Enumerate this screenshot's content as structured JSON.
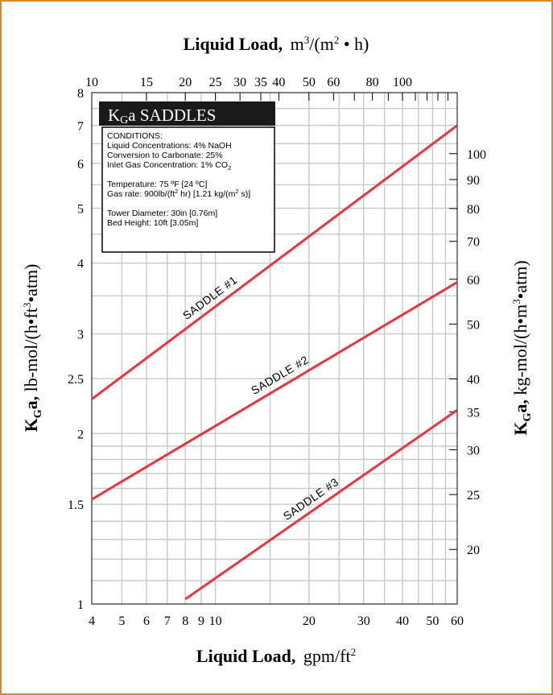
{
  "chart_data": {
    "type": "line",
    "title": "KGa SADDLES",
    "title_parts": {
      "k": "K",
      "sub": "G",
      "rest": "a SADDLES"
    },
    "x_bottom": {
      "label_bold": "Liquid Load,",
      "label_unit": "gpm/ft",
      "label_sup": "2",
      "scale": "log",
      "range": [
        4,
        60
      ],
      "ticks": [
        4,
        5,
        6,
        7,
        8,
        9,
        10,
        20,
        30,
        40,
        50,
        60
      ],
      "tick_labels": [
        "4",
        "5",
        "6",
        "7",
        "8",
        "9",
        "10",
        "20",
        "30",
        "40",
        "50",
        "60"
      ]
    },
    "x_top": {
      "label_bold": "Liquid Load,",
      "label_unit_a": "m",
      "label_sup_a": "3",
      "label_unit_b": "/(m",
      "label_sup_b": "2",
      "label_unit_c": " • h)",
      "scale": "log",
      "ticks": [
        10,
        15,
        20,
        25,
        30,
        35,
        40,
        50,
        60,
        80,
        100
      ],
      "tick_labels": [
        "10",
        "15",
        "20",
        "25",
        "30",
        "35",
        "40",
        "50",
        "60",
        "80",
        "100"
      ]
    },
    "y_left": {
      "label_k": "K",
      "label_sub": "G",
      "label_a": "a,",
      "label_unit": " lb-mol/(h•ft",
      "label_sup": "3",
      "label_end": "•atm)",
      "scale": "log",
      "range": [
        1,
        8
      ],
      "ticks": [
        1,
        1.5,
        2,
        2.5,
        3,
        4,
        5,
        6,
        7,
        8
      ],
      "tick_labels": [
        "1",
        "1.5",
        "2",
        "2.5",
        "3",
        "4",
        "5",
        "6",
        "7",
        "8"
      ]
    },
    "y_right": {
      "label_k": "K",
      "label_sub": "G",
      "label_a": "a,",
      "label_unit": " kg-mol/(h•m",
      "label_sup": "3",
      "label_end": "•atm)",
      "scale": "log",
      "ticks": [
        20,
        25,
        30,
        35,
        40,
        50,
        60,
        70,
        80,
        90,
        100
      ],
      "tick_labels": [
        "20",
        "25",
        "30",
        "35",
        "40",
        "50",
        "60",
        "70",
        "80",
        "90",
        "100"
      ]
    },
    "grid": true,
    "series": [
      {
        "name": "SADDLE #1",
        "x": [
          4,
          60
        ],
        "y": [
          2.3,
          7.0
        ]
      },
      {
        "name": "SADDLE #2",
        "x": [
          4,
          60
        ],
        "y": [
          1.53,
          3.7
        ]
      },
      {
        "name": "SADDLE #3",
        "x": [
          8,
          60
        ],
        "y": [
          1.02,
          2.2
        ]
      }
    ],
    "conditions": {
      "heading": "CONDITIONS:",
      "liquid_conc": "Liquid Concentrations: 4% NaOH",
      "conversion": "Conversion to Carbonate: 25%",
      "inlet_a": "Inlet Gas Concentration: 1% CO",
      "inlet_sub": "2",
      "temperature": "Temperature: 75 ºF [24 ºC]",
      "gas_a": "Gas rate: 900lb/(ft",
      "gas_sup1": "2",
      "gas_b": " hr)  [1.21 kg/(m",
      "gas_sup2": "2",
      "gas_c": " s)]",
      "diameter": "Tower Diameter: 30in [0.76m]",
      "bed_height": "Bed Height: 10ft [3.05m]"
    },
    "colors": {
      "line": "#e8353d",
      "grid": "#c8c8c8",
      "frame": "#d9892a",
      "title_bg": "#1a1a1a"
    }
  }
}
